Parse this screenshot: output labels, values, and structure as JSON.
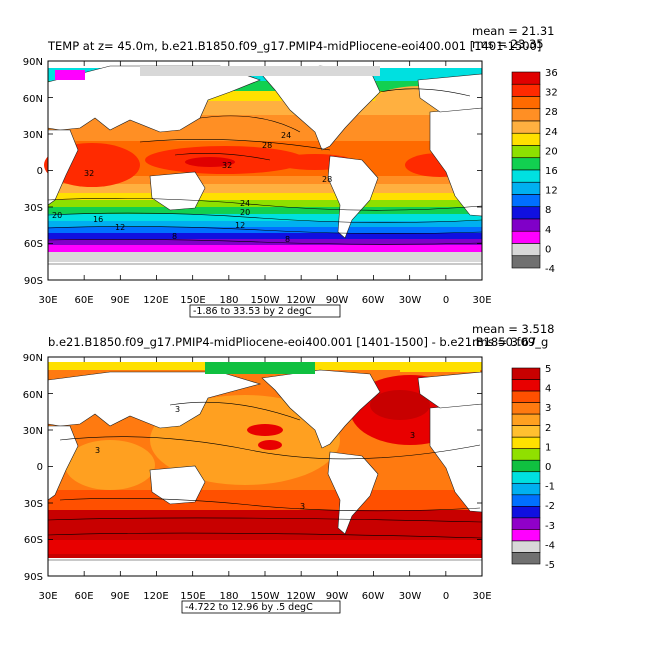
{
  "panels": [
    {
      "title": "TEMP at z=   45.0m, b.e21.B1850.f09_g17.PMIP4-midPliocene-eoi400.001 [1401-1500]",
      "mean_label": "mean = 21.31",
      "rms_label": "rms = 23.35",
      "range_label": "-1.86 to 33.53 by 2 degC",
      "lat_labels": [
        "90N",
        "60N",
        "30N",
        "0",
        "30S",
        "60S",
        "90S"
      ],
      "lon_labels": [
        "30E",
        "60E",
        "90E",
        "120E",
        "150E",
        "180",
        "150W",
        "120W",
        "90W",
        "60W",
        "30W",
        "0",
        "30E"
      ],
      "colorbar": {
        "labels": [
          "36",
          "32",
          "28",
          "24",
          "20",
          "16",
          "12",
          "8",
          "4",
          "0",
          "-4"
        ],
        "colors": [
          "#e00000",
          "#ff2a00",
          "#ff6a00",
          "#ff8f24",
          "#ffb040",
          "#ffe000",
          "#8ee000",
          "#12d050",
          "#00e0e0",
          "#00b0f0",
          "#0070ff",
          "#1010e0",
          "#8000c8",
          "#ff00ff",
          "#d8d8d8",
          "#707070"
        ]
      },
      "contour_labels": [
        "24",
        "28",
        "32",
        "32",
        "28",
        "24",
        "20",
        "16",
        "12",
        "8",
        "20",
        "12",
        "8"
      ]
    },
    {
      "title": "b.e21.B1850.f09_g17.PMIP4-midPliocene-eoi400.001  [1401-1500] - b.e21.B1850.f09_g",
      "mean_label": "mean = 3.518",
      "rms_label": "rms = 3.67",
      "range_label": "-4.722 to 12.96 by .5 degC",
      "lat_labels": [
        "90N",
        "60N",
        "30N",
        "0",
        "30S",
        "60S",
        "90S"
      ],
      "lon_labels": [
        "30E",
        "60E",
        "90E",
        "120E",
        "150E",
        "180",
        "150W",
        "120W",
        "90W",
        "60W",
        "30W",
        "0",
        "30E"
      ],
      "colorbar": {
        "labels": [
          "5",
          "4",
          "3",
          "2",
          "1",
          "0",
          "-1",
          "-2",
          "-3",
          "-4",
          "-5"
        ],
        "colors": [
          "#c80000",
          "#e80000",
          "#ff5000",
          "#ff7a10",
          "#ffa020",
          "#ffc030",
          "#ffe000",
          "#90e000",
          "#10c040",
          "#00e0e0",
          "#00b0f0",
          "#0070ff",
          "#1010e0",
          "#9000c8",
          "#ff00ff",
          "#d8d8d8",
          "#707070"
        ]
      },
      "contour_labels": [
        "3",
        "3",
        "3",
        "3"
      ]
    }
  ]
}
